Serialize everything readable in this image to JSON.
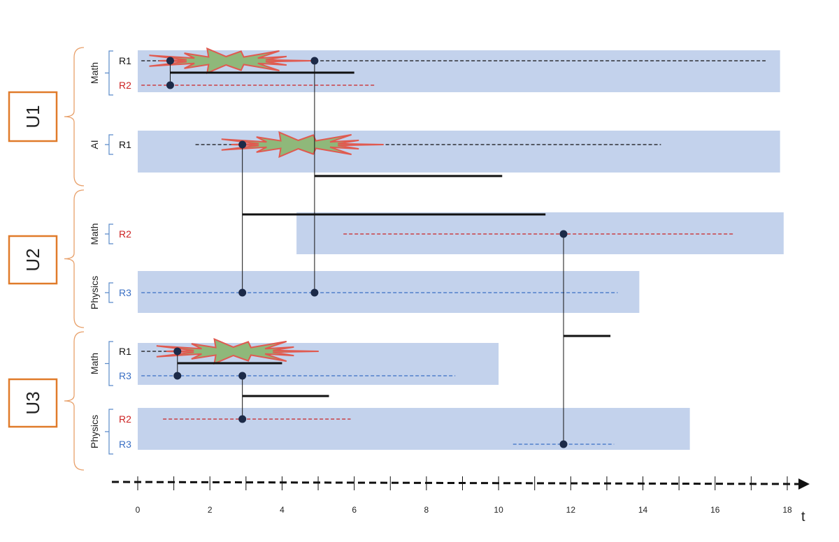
{
  "colors": {
    "band": "#c3d2ec",
    "unit_box": "#e07b2a",
    "brace": "#e8a06a",
    "row_brace": "#5b8bc9",
    "red": "#cc2222",
    "blue": "#3a6fc4",
    "black": "#111111",
    "dot": "#1c2a48",
    "star_fill": "#8fb87a",
    "star_stroke": "#e05a50"
  },
  "units": [
    {
      "id": "u1",
      "label": "U1",
      "groups": [
        {
          "id": "u1-math",
          "label": "Math",
          "rows": [
            {
              "id": "u1-math-r1",
              "label": "R1",
              "color": "black"
            },
            {
              "id": "u1-math-r2",
              "label": "R2",
              "color": "red"
            }
          ]
        },
        {
          "id": "u1-ai",
          "label": "AI",
          "rows": [
            {
              "id": "u1-ai-r1",
              "label": "R1",
              "color": "black"
            }
          ]
        }
      ]
    },
    {
      "id": "u2",
      "label": "U2",
      "groups": [
        {
          "id": "u2-math",
          "label": "Math",
          "rows": [
            {
              "id": "u2-math-r2",
              "label": "R2",
              "color": "red"
            }
          ]
        },
        {
          "id": "u2-physics",
          "label": "Physics",
          "rows": [
            {
              "id": "u2-physics-r3",
              "label": "R3",
              "color": "blue"
            }
          ]
        }
      ]
    },
    {
      "id": "u3",
      "label": "U3",
      "groups": [
        {
          "id": "u3-math",
          "label": "Math",
          "rows": [
            {
              "id": "u3-math-r1",
              "label": "R1",
              "color": "black"
            },
            {
              "id": "u3-math-r3",
              "label": "R3",
              "color": "blue"
            }
          ]
        },
        {
          "id": "u3-physics",
          "label": "Physics",
          "rows": [
            {
              "id": "u3-physics-r2",
              "label": "R2",
              "color": "red"
            },
            {
              "id": "u3-physics-r3",
              "label": "R3",
              "color": "blue"
            }
          ]
        }
      ]
    }
  ],
  "bands": [
    {
      "group": "u1-math",
      "start": 0,
      "end": 17.8
    },
    {
      "group": "u1-ai",
      "start": 0,
      "end": 17.8
    },
    {
      "group": "u2-math",
      "start": 4.4,
      "end": 17.9
    },
    {
      "group": "u2-physics",
      "start": 0,
      "end": 13.9
    },
    {
      "group": "u3-math",
      "start": 0,
      "end": 10
    },
    {
      "group": "u3-physics",
      "start": 0,
      "end": 15.3
    }
  ],
  "dashed_lines": [
    {
      "row": "u1-math-r1",
      "start": 0.1,
      "end": 17.4
    },
    {
      "row": "u1-math-r2",
      "start": 0.1,
      "end": 6.6
    },
    {
      "row": "u1-ai-r1",
      "start": 1.6,
      "end": 14.5
    },
    {
      "row": "u2-math-r2",
      "start": 5.7,
      "end": 16.5
    },
    {
      "row": "u2-physics-r3",
      "start": 0.1,
      "end": 13.3
    },
    {
      "row": "u3-math-r1",
      "start": 0.1,
      "end": 4
    },
    {
      "row": "u3-math-r3",
      "start": 0.1,
      "end": 8.8
    },
    {
      "row": "u3-physics-r2",
      "start": 0.7,
      "end": 5.9
    },
    {
      "row": "u3-physics-r3",
      "start": 10.4,
      "end": 13.2
    }
  ],
  "events": [
    {
      "t": 0.9,
      "rows": [
        "u1-math-r1",
        "u1-math-r2"
      ],
      "duration_end": 6
    },
    {
      "t": 4.9,
      "rows": [
        "u1-math-r1",
        "u2-physics-r3"
      ],
      "duration_end": 10.1
    },
    {
      "t": 2.9,
      "rows": [
        "u1-ai-r1",
        "u2-physics-r3"
      ],
      "duration_end": 11.3
    },
    {
      "t": 11.8,
      "rows": [
        "u2-math-r2",
        "u3-physics-r3"
      ],
      "duration_end": 13.1
    },
    {
      "t": 1.1,
      "rows": [
        "u3-math-r1",
        "u3-math-r3"
      ],
      "duration_end": 4
    },
    {
      "t": 2.9,
      "rows": [
        "u3-math-r3",
        "u3-physics-r2"
      ],
      "duration_end": 5.3
    }
  ],
  "bursts": [
    {
      "row": "u1-math-r1",
      "t": 0.9,
      "name": "burst-u1-math"
    },
    {
      "row": "u1-ai-r1",
      "t": 2.9,
      "name": "burst-u1-ai"
    },
    {
      "row": "u3-math-r1",
      "t": 1.1,
      "name": "burst-u3-math"
    }
  ],
  "axis": {
    "min": 0,
    "max": 18,
    "tick_labels": [
      0,
      2,
      4,
      6,
      8,
      10,
      12,
      14,
      16,
      18
    ],
    "label": "t"
  }
}
